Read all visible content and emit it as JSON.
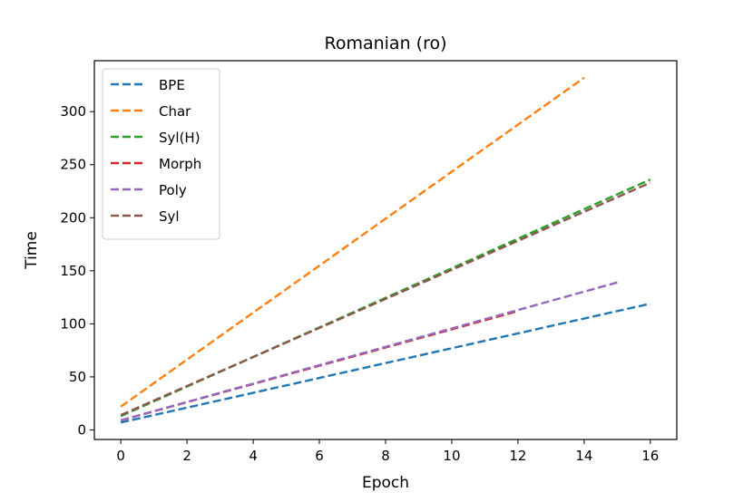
{
  "chart_data": {
    "type": "line",
    "title": "Romanian (ro)",
    "xlabel": "Epoch",
    "ylabel": "Time",
    "xlim": [
      -0.8,
      16.8
    ],
    "ylim": [
      -9,
      348
    ],
    "xticks": [
      0,
      2,
      4,
      6,
      8,
      10,
      12,
      14,
      16
    ],
    "yticks": [
      0,
      50,
      100,
      150,
      200,
      250,
      300
    ],
    "grid": false,
    "legend_position": "top-left",
    "line_style": "dashed",
    "series": [
      {
        "name": "BPE",
        "color": "#1f77b4",
        "x": [
          0,
          16
        ],
        "y": [
          7,
          119
        ]
      },
      {
        "name": "Char",
        "color": "#ff7f0e",
        "x": [
          0,
          14
        ],
        "y": [
          22,
          332
        ]
      },
      {
        "name": "Syl(H)",
        "color": "#2ca02c",
        "x": [
          0,
          16
        ],
        "y": [
          13,
          236
        ]
      },
      {
        "name": "Morph",
        "color": "#d62728",
        "x": [
          0,
          12
        ],
        "y": [
          9,
          112
        ]
      },
      {
        "name": "Poly",
        "color": "#9467bd",
        "x": [
          0,
          15
        ],
        "y": [
          9,
          139
        ]
      },
      {
        "name": "Syl",
        "color": "#8c564b",
        "x": [
          0,
          16
        ],
        "y": [
          14,
          233
        ]
      }
    ]
  }
}
